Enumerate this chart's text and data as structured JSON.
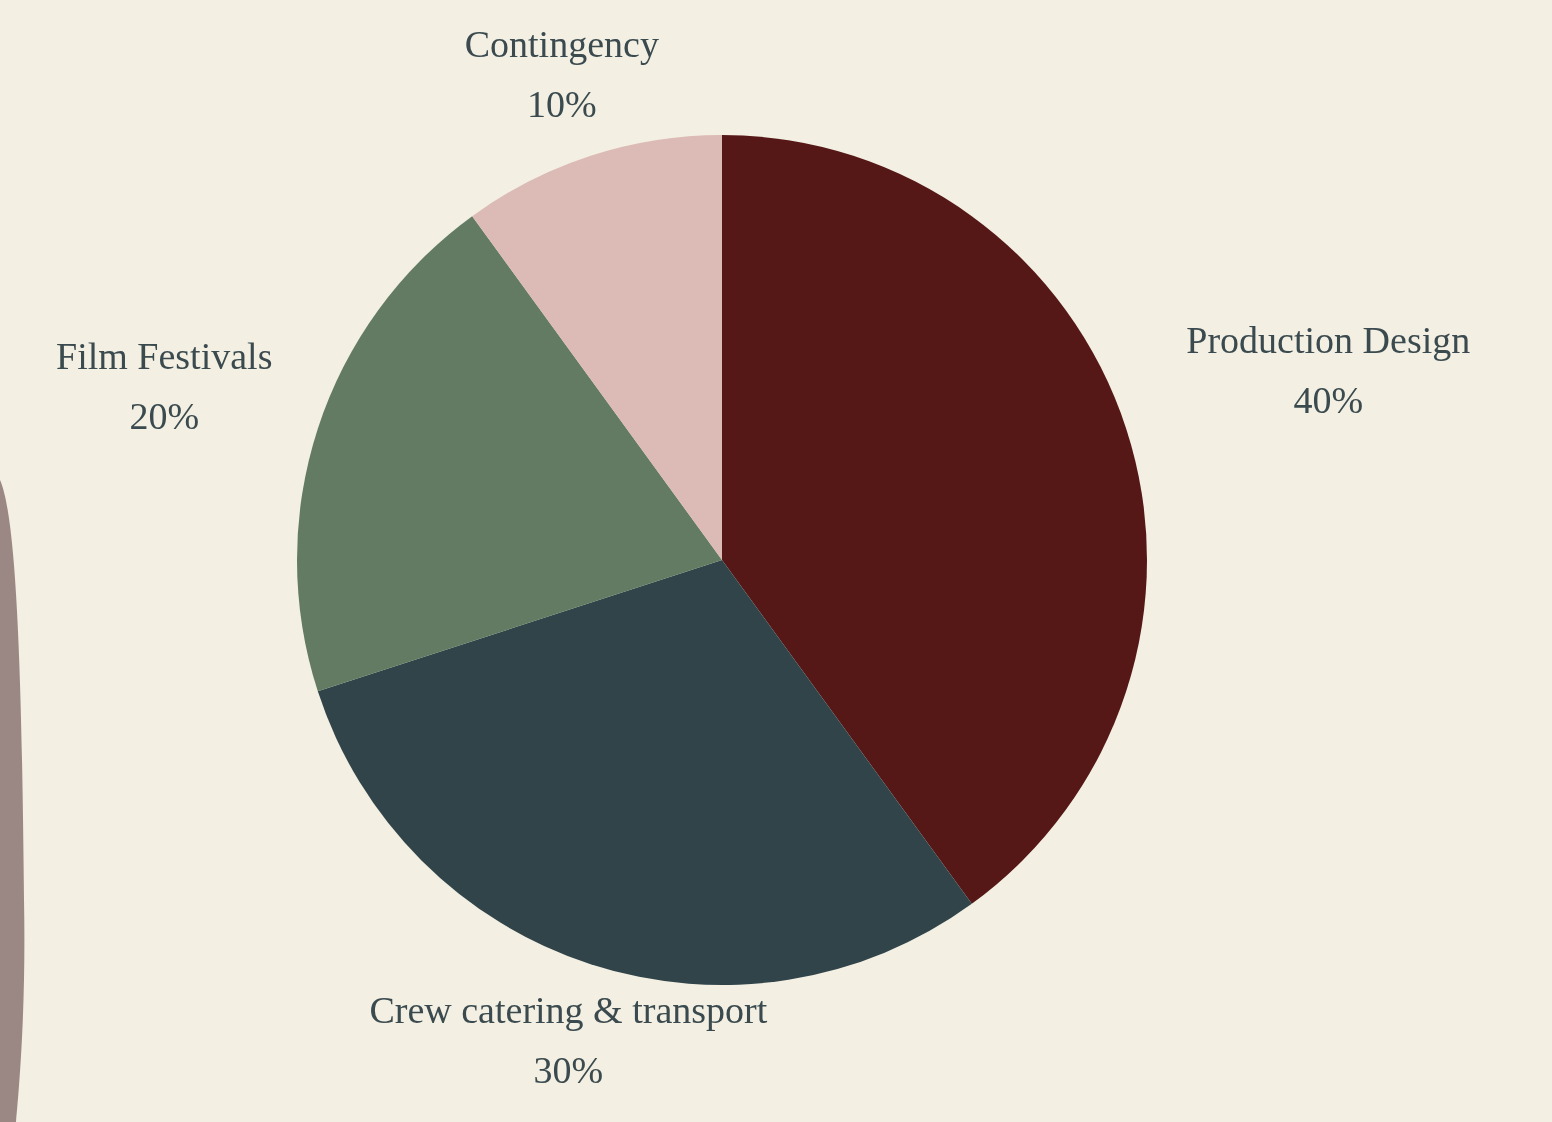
{
  "chart_data": {
    "type": "pie",
    "categories": [
      "Production Design",
      "Crew catering & transport",
      "Film Festivals",
      "Contingency"
    ],
    "values": [
      40,
      30,
      20,
      10
    ],
    "colors": [
      "#561717",
      "#30444a",
      "#627b62",
      "#dcbab5"
    ],
    "value_labels": [
      "40%",
      "30%",
      "20%",
      "10%"
    ]
  }
}
